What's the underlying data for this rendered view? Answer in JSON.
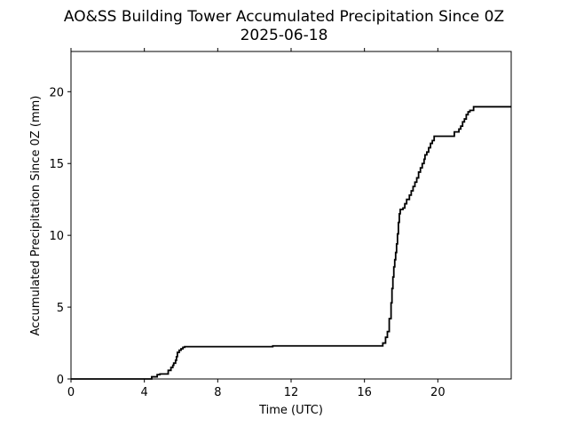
{
  "chart_data": {
    "type": "line",
    "title": "AO&SS Building Tower Accumulated Precipitation Since 0Z",
    "subtitle": "2025-06-18",
    "xlabel": "Time (UTC)",
    "ylabel": "Accumulated Precipitation Since 0Z (mm)",
    "xlim": [
      0,
      24
    ],
    "ylim": [
      0,
      22.8
    ],
    "x_ticks": [
      0,
      4,
      8,
      12,
      16,
      20
    ],
    "x_tick_labels": [
      "0",
      "4",
      "8",
      "12",
      "16",
      "20"
    ],
    "y_ticks": [
      0,
      5,
      10,
      15,
      20
    ],
    "y_tick_labels": [
      "0",
      "5",
      "10",
      "15",
      "20"
    ],
    "grid": false,
    "legend": "none",
    "line_color": "#000000",
    "series": [
      {
        "step": true,
        "x": [
          0,
          4.4,
          4.7,
          4.85,
          5.3,
          5.45,
          5.55,
          5.6,
          5.7,
          5.75,
          5.8,
          5.9,
          6.0,
          6.1,
          6.2,
          11.0,
          17.0,
          17.15,
          17.25,
          17.35,
          17.45,
          17.5,
          17.55,
          17.6,
          17.65,
          17.7,
          17.75,
          17.8,
          17.85,
          17.9,
          17.95,
          18.0,
          18.05,
          18.1,
          18.2,
          18.3,
          18.45,
          18.55,
          18.65,
          18.75,
          18.85,
          18.95,
          19.05,
          19.15,
          19.25,
          19.3,
          19.4,
          19.5,
          19.6,
          19.7,
          19.8,
          19.95,
          20.05,
          20.15,
          20.35,
          20.9,
          21.15,
          21.25,
          21.35,
          21.45,
          21.55,
          21.65,
          21.75,
          21.95,
          24.0
        ],
        "y": [
          0.0,
          0.15,
          0.3,
          0.35,
          0.6,
          0.8,
          0.95,
          1.1,
          1.3,
          1.55,
          1.85,
          2.0,
          2.1,
          2.2,
          2.25,
          2.3,
          2.5,
          2.9,
          3.3,
          4.2,
          5.3,
          6.3,
          7.1,
          7.8,
          8.3,
          8.8,
          9.4,
          10.1,
          10.9,
          11.5,
          11.8,
          11.8,
          11.8,
          11.9,
          12.2,
          12.5,
          12.8,
          13.1,
          13.4,
          13.7,
          14.0,
          14.4,
          14.7,
          15.0,
          15.3,
          15.6,
          15.8,
          16.1,
          16.4,
          16.6,
          16.9,
          16.9,
          16.9,
          16.9,
          16.9,
          17.2,
          17.4,
          17.6,
          17.9,
          18.1,
          18.4,
          18.6,
          18.7,
          18.95,
          18.95
        ]
      }
    ]
  }
}
